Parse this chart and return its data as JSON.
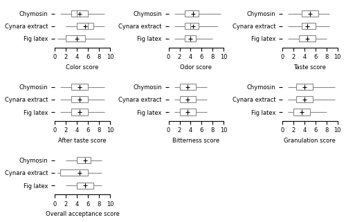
{
  "subplots": [
    {
      "title": "Color score",
      "categories": [
        "Chymosin",
        "Cynara extract",
        "Fig latex"
      ],
      "data": [
        {
          "min": 1,
          "q1": 3,
          "median": 4,
          "q3": 6,
          "max": 9,
          "mean": 4.5
        },
        {
          "min": 2,
          "q1": 4,
          "median": 6,
          "q3": 7,
          "max": 9,
          "mean": 5.5
        },
        {
          "min": 0.5,
          "q1": 2,
          "median": 4,
          "q3": 5.5,
          "max": 9,
          "mean": 4
        }
      ],
      "xlim": [
        0,
        10
      ],
      "xlabel": "Color score"
    },
    {
      "title": "Odor score",
      "categories": [
        "Chymosin",
        "Cynara extract",
        "Fig latex"
      ],
      "data": [
        {
          "min": 1,
          "q1": 3,
          "median": 4.5,
          "q3": 5.5,
          "max": 9.5,
          "mean": 4.5
        },
        {
          "min": 1,
          "q1": 3,
          "median": 4,
          "q3": 5.5,
          "max": 9,
          "mean": 4.5
        },
        {
          "min": 1,
          "q1": 3,
          "median": 4,
          "q3": 5,
          "max": 8,
          "mean": 4
        }
      ],
      "xlim": [
        0,
        10
      ],
      "xlabel": "Odor score"
    },
    {
      "title": "Taste score",
      "categories": [
        "Chymosin",
        "Cynara extract",
        "Fig latex"
      ],
      "data": [
        {
          "min": 1,
          "q1": 3.5,
          "median": 5,
          "q3": 6.5,
          "max": 8.5,
          "mean": 5
        },
        {
          "min": 1,
          "q1": 3.5,
          "median": 4.5,
          "q3": 6,
          "max": 8.5,
          "mean": 4.5
        },
        {
          "min": 1,
          "q1": 3,
          "median": 4.5,
          "q3": 6,
          "max": 8,
          "mean": 4.5
        }
      ],
      "xlim": [
        0,
        10
      ],
      "xlabel": "Taste score"
    },
    {
      "title": "After taste score",
      "categories": [
        "Chymosin",
        "Cynara extract",
        "Fig latex"
      ],
      "data": [
        {
          "min": 1,
          "q1": 3,
          "median": 4.5,
          "q3": 6,
          "max": 9,
          "mean": 4.5
        },
        {
          "min": 1,
          "q1": 3,
          "median": 4.5,
          "q3": 6,
          "max": 9,
          "mean": 4.5
        },
        {
          "min": 1,
          "q1": 3,
          "median": 4.5,
          "q3": 6,
          "max": 9,
          "mean": 4.5
        }
      ],
      "xlim": [
        0,
        10
      ],
      "xlabel": "After taste score"
    },
    {
      "title": "Bitterness score",
      "categories": [
        "Chymosin",
        "Cynara extract",
        "Fig latex"
      ],
      "data": [
        {
          "min": 1,
          "q1": 2,
          "median": 3.5,
          "q3": 5,
          "max": 7,
          "mean": 3.5
        },
        {
          "min": 1,
          "q1": 2,
          "median": 3.5,
          "q3": 5,
          "max": 7,
          "mean": 3.5
        },
        {
          "min": 1,
          "q1": 2,
          "median": 3.5,
          "q3": 5,
          "max": 7,
          "mean": 3.5
        }
      ],
      "xlim": [
        0,
        10
      ],
      "xlabel": "Bitterness score"
    },
    {
      "title": "Granulation score",
      "categories": [
        "Chymosin",
        "Cynara extract",
        "Fig latex"
      ],
      "data": [
        {
          "min": 1,
          "q1": 2.5,
          "median": 4,
          "q3": 5.5,
          "max": 9.5,
          "mean": 4
        },
        {
          "min": 1,
          "q1": 2.5,
          "median": 4,
          "q3": 5.5,
          "max": 9.5,
          "mean": 4
        },
        {
          "min": 1,
          "q1": 2,
          "median": 3.5,
          "q3": 5,
          "max": 8,
          "mean": 3.5
        }
      ],
      "xlim": [
        0,
        10
      ],
      "xlabel": "Granulation score"
    },
    {
      "title": "Overall acceptance score",
      "categories": [
        "Chymosin",
        "Cynara extract",
        "Fig latex"
      ],
      "data": [
        {
          "min": 2,
          "q1": 4,
          "median": 5.5,
          "q3": 6.5,
          "max": 8.5,
          "mean": 5.5
        },
        {
          "min": 0.5,
          "q1": 1,
          "median": 4.5,
          "q3": 6,
          "max": 8.5,
          "mean": 4.5
        },
        {
          "min": 2,
          "q1": 4,
          "median": 5.5,
          "q3": 7,
          "max": 8.5,
          "mean": 5.5
        }
      ],
      "xlim": [
        0,
        10
      ],
      "xlabel": "Overall acceptance score"
    }
  ],
  "box_color": "#d3d3d3",
  "median_color": "#808080",
  "whisker_color": "#808080",
  "mean_marker": "+",
  "fontsize": 6,
  "label_fontsize": 6
}
